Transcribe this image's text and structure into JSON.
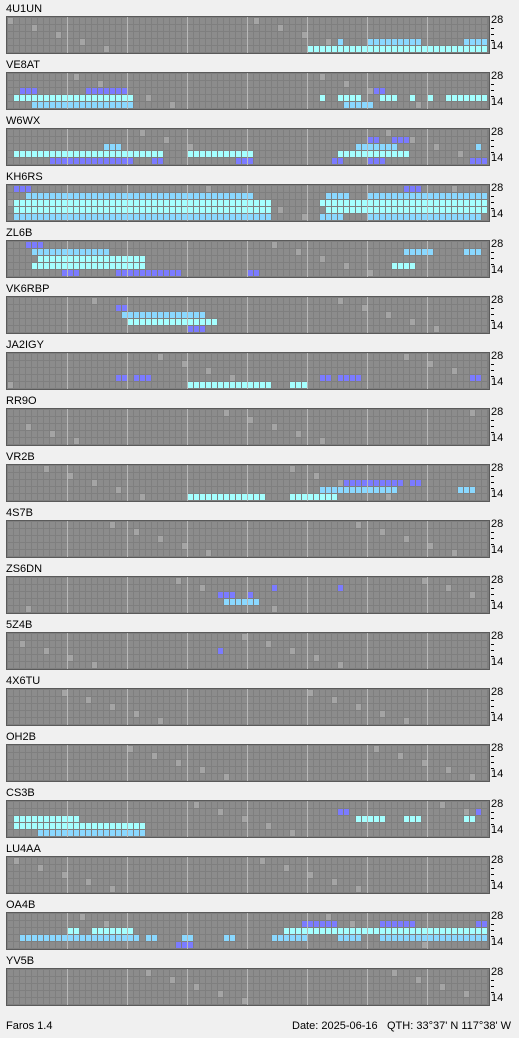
{
  "colors": {
    "background": "#f0f0f0",
    "grid_bg": "#7f7f7f",
    "cell": "#8c8c8c",
    "cell_dim": "#a5a5a5",
    "strong": "#a5ffff",
    "medium": "#8ad8ff",
    "weak": "#7b7bff"
  },
  "axis": {
    "top_label": "28",
    "bottom_label": "14"
  },
  "stations": [
    {
      "name": "4U1UN",
      "active": [
        [
          2,
          "c",
          82,
          83,
          99,
          100
        ],
        [
          3,
          "b",
          55,
          60,
          61,
          62,
          63,
          64,
          65,
          66,
          67,
          68,
          76,
          77,
          78,
          79,
          80,
          81,
          85,
          86,
          87,
          88,
          89,
          90,
          91,
          92,
          93,
          94,
          95,
          96,
          97
        ],
        [
          4,
          "a",
          50,
          51,
          52,
          53,
          54,
          55,
          56,
          57,
          58,
          59,
          60,
          61,
          62,
          63,
          64,
          65,
          66,
          67,
          68,
          69,
          70,
          71,
          72,
          73,
          74,
          75,
          76,
          77,
          78,
          79,
          80,
          81,
          82,
          83,
          84,
          85,
          86,
          87,
          88,
          89,
          90,
          91,
          92,
          93,
          94,
          95,
          96
        ],
        [
          5,
          "b",
          51,
          52,
          53,
          70,
          71,
          72,
          75,
          76,
          77,
          78,
          79,
          80,
          81,
          82,
          83,
          90,
          91,
          94,
          95
        ]
      ]
    },
    {
      "name": "VE8AT",
      "active": [
        [
          2,
          "c",
          2,
          3,
          4,
          13,
          14,
          15,
          16,
          17,
          18,
          19,
          61,
          62
        ],
        [
          3,
          "a",
          1,
          2,
          3,
          4,
          5,
          6,
          7,
          8,
          9,
          10,
          11,
          12,
          13,
          14,
          15,
          16,
          17,
          18,
          19,
          20,
          52,
          55,
          56,
          57,
          58,
          62,
          63,
          64,
          67,
          70,
          73,
          74,
          75,
          76,
          77,
          78,
          79
        ],
        [
          4,
          "b",
          4,
          5,
          6,
          7,
          8,
          9,
          10,
          11,
          12,
          13,
          14,
          15,
          16,
          17,
          18,
          19,
          20,
          56,
          57,
          58,
          59,
          60
        ],
        [
          5,
          "c",
          28,
          29,
          30,
          33
        ]
      ]
    },
    {
      "name": "W6WX",
      "active": [
        [
          1,
          "c",
          60,
          61,
          64,
          65,
          66
        ],
        [
          2,
          "b",
          16,
          17,
          18,
          58,
          59,
          60,
          61,
          62,
          63,
          64,
          78
        ],
        [
          3,
          "a",
          1,
          2,
          3,
          4,
          5,
          6,
          7,
          8,
          9,
          10,
          11,
          12,
          13,
          14,
          15,
          16,
          17,
          18,
          19,
          20,
          21,
          22,
          23,
          24,
          25,
          30,
          31,
          32,
          33,
          34,
          35,
          36,
          37,
          38,
          39,
          40,
          55,
          56,
          57,
          58,
          59,
          60,
          61,
          62,
          63,
          64,
          65,
          66
        ],
        [
          4,
          "c",
          7,
          8,
          9,
          10,
          11,
          12,
          13,
          14,
          15,
          16,
          17,
          18,
          19,
          20,
          24,
          25,
          38,
          39,
          40,
          54,
          55,
          60,
          61,
          62,
          77,
          78,
          79
        ]
      ]
    },
    {
      "name": "KH6RS",
      "active": [
        [
          0,
          "c",
          1,
          2,
          3,
          66,
          67,
          68
        ],
        [
          1,
          "b",
          3,
          4,
          5,
          6,
          7,
          8,
          9,
          10,
          11,
          12,
          13,
          14,
          15,
          16,
          17,
          18,
          19,
          20,
          21,
          22,
          23,
          24,
          25,
          26,
          27,
          28,
          29,
          30,
          31,
          32,
          33,
          34,
          35,
          36,
          37,
          38,
          39,
          40,
          53,
          54,
          55,
          56,
          60,
          61,
          62,
          63,
          64,
          65,
          66,
          67,
          68,
          69,
          70,
          71,
          72,
          73,
          74,
          75,
          76,
          77,
          78,
          79
        ],
        [
          2,
          "a",
          1,
          2,
          3,
          4,
          5,
          6,
          7,
          8,
          9,
          10,
          11,
          12,
          13,
          14,
          15,
          16,
          17,
          18,
          19,
          20,
          21,
          22,
          23,
          24,
          25,
          26,
          27,
          28,
          29,
          30,
          31,
          32,
          33,
          34,
          35,
          36,
          37,
          38,
          39,
          40,
          41,
          42,
          43,
          52,
          53,
          54,
          55,
          56,
          57,
          58,
          59,
          60,
          61,
          62,
          63,
          64,
          65,
          66,
          67,
          68,
          69,
          70,
          71,
          72,
          73,
          74,
          75,
          76,
          77,
          78,
          79,
          80
        ],
        [
          3,
          "a",
          1,
          2,
          3,
          4,
          5,
          6,
          7,
          8,
          9,
          10,
          11,
          12,
          13,
          14,
          15,
          16,
          17,
          18,
          19,
          20,
          21,
          22,
          23,
          24,
          25,
          26,
          27,
          28,
          29,
          30,
          31,
          32,
          33,
          34,
          35,
          36,
          37,
          38,
          39,
          40,
          41,
          42,
          43,
          53,
          54,
          55,
          56,
          57,
          58,
          59,
          60,
          61,
          62,
          63,
          64,
          65,
          66,
          67,
          68,
          69,
          70,
          71,
          72,
          73,
          74,
          75,
          76,
          77,
          78,
          79
        ],
        [
          4,
          "b",
          1,
          2,
          3,
          4,
          5,
          6,
          7,
          8,
          9,
          10,
          11,
          12,
          13,
          14,
          15,
          16,
          17,
          18,
          19,
          20,
          21,
          22,
          23,
          24,
          25,
          26,
          27,
          28,
          29,
          30,
          31,
          32,
          33,
          34,
          35,
          36,
          37,
          38,
          39,
          40,
          41,
          42,
          43,
          52,
          53,
          54,
          55,
          60,
          61,
          62,
          63,
          64,
          65,
          66,
          67,
          68,
          69,
          70,
          71,
          72,
          73,
          74,
          75,
          76,
          77,
          78
        ]
      ]
    },
    {
      "name": "ZL6B",
      "active": [
        [
          0,
          "c",
          3,
          4,
          5
        ],
        [
          1,
          "b",
          4,
          5,
          6,
          7,
          8,
          9,
          10,
          11,
          12,
          13,
          14,
          15,
          16,
          66,
          67,
          68,
          69,
          70,
          76,
          77,
          78
        ],
        [
          2,
          "a",
          5,
          6,
          7,
          8,
          9,
          10,
          11,
          12,
          13,
          14,
          15,
          16,
          17,
          18,
          19,
          20,
          21,
          22
        ],
        [
          3,
          "a",
          4,
          5,
          6,
          7,
          8,
          9,
          10,
          11,
          12,
          13,
          14,
          15,
          16,
          17,
          18,
          19,
          20,
          21,
          22,
          64,
          65,
          66,
          67
        ],
        [
          4,
          "c",
          9,
          10,
          11,
          18,
          19,
          20,
          21,
          22,
          23,
          24,
          25,
          26,
          27,
          28,
          40,
          41
        ]
      ]
    },
    {
      "name": "VK6RBP",
      "active": [
        [
          1,
          "c",
          18,
          19
        ],
        [
          2,
          "b",
          19,
          20,
          21,
          22,
          23,
          24,
          25,
          26,
          27,
          28,
          29,
          30,
          31,
          32
        ],
        [
          3,
          "a",
          20,
          21,
          22,
          23,
          24,
          25,
          26,
          27,
          28,
          29,
          30,
          31,
          32,
          33,
          34
        ],
        [
          4,
          "c",
          30,
          31,
          32
        ]
      ]
    },
    {
      "name": "JA2IGY",
      "active": [
        [
          3,
          "c",
          18,
          19,
          21,
          22,
          23,
          52,
          53,
          55,
          56,
          57,
          58,
          77,
          78
        ],
        [
          4,
          "a",
          30,
          31,
          32,
          33,
          34,
          35,
          36,
          37,
          38,
          39,
          40,
          41,
          42,
          43,
          47,
          48,
          49
        ]
      ]
    },
    {
      "name": "RR9O",
      "active": []
    },
    {
      "name": "VR2B",
      "active": [
        [
          2,
          "c",
          56,
          57,
          58,
          59,
          60,
          61,
          62,
          63,
          64,
          65,
          67,
          68
        ],
        [
          3,
          "b",
          52,
          53,
          54,
          55,
          56,
          57,
          58,
          59,
          60,
          61,
          62,
          63,
          64,
          75,
          76,
          77
        ],
        [
          4,
          "a",
          30,
          31,
          32,
          33,
          34,
          35,
          36,
          37,
          38,
          39,
          40,
          41,
          42,
          47,
          48,
          49,
          50,
          51,
          52,
          53,
          54
        ]
      ]
    },
    {
      "name": "4S7B",
      "active": []
    },
    {
      "name": "ZS6DN",
      "active": [
        [
          1,
          "c",
          44,
          55
        ],
        [
          2,
          "c",
          35,
          36,
          37,
          40
        ],
        [
          3,
          "b",
          36,
          37,
          38,
          39,
          40,
          41
        ]
      ]
    },
    {
      "name": "5Z4B",
      "active": [
        [
          2,
          "c",
          35
        ]
      ]
    },
    {
      "name": "4X6TU",
      "active": []
    },
    {
      "name": "OH2B",
      "active": []
    },
    {
      "name": "CS3B",
      "active": [
        [
          1,
          "c",
          55,
          56,
          78
        ],
        [
          2,
          "a",
          1,
          2,
          3,
          4,
          5,
          6,
          7,
          8,
          9,
          10,
          11,
          58,
          59,
          60,
          61,
          62,
          66,
          67,
          68,
          76,
          77
        ],
        [
          3,
          "a",
          1,
          2,
          3,
          4,
          5,
          6,
          7,
          8,
          9,
          10,
          11,
          12,
          13,
          14,
          15,
          16,
          17,
          18,
          19,
          20,
          21,
          22
        ],
        [
          4,
          "b",
          5,
          6,
          7,
          8,
          9,
          10,
          11,
          12,
          13,
          14,
          15,
          16,
          17,
          18,
          19,
          20,
          21,
          22
        ]
      ]
    },
    {
      "name": "LU4AA",
      "active": []
    },
    {
      "name": "OA4B",
      "active": [
        [
          1,
          "c",
          49,
          50,
          51,
          52,
          53,
          54,
          62,
          63,
          64,
          65,
          66,
          67,
          78,
          79
        ],
        [
          2,
          "a",
          10,
          11,
          14,
          15,
          16,
          17,
          18,
          19,
          20,
          46,
          47,
          48,
          49,
          50,
          51,
          52,
          53,
          54,
          55,
          56,
          57,
          58,
          59,
          60,
          61,
          62,
          63,
          64,
          65,
          66,
          67,
          68,
          69,
          70,
          71,
          72,
          73,
          74,
          75,
          76,
          77,
          78,
          79,
          80
        ],
        [
          3,
          "b",
          2,
          3,
          4,
          5,
          6,
          7,
          8,
          9,
          10,
          11,
          12,
          13,
          14,
          15,
          16,
          17,
          18,
          19,
          20,
          21,
          23,
          24,
          29,
          30,
          36,
          37,
          44,
          45,
          46,
          47,
          48,
          49,
          55,
          56,
          57,
          58,
          62,
          63,
          64,
          65,
          66,
          67,
          68,
          69,
          70,
          71,
          72,
          73,
          74,
          75,
          76,
          77,
          78,
          79,
          80
        ],
        [
          4,
          "c",
          28,
          29,
          30
        ]
      ]
    },
    {
      "name": "YV5B",
      "active": []
    }
  ],
  "footer": {
    "version": "Faros 1.4",
    "date": "Date: 2025-06-16",
    "qth": "QTH: 33°37' N  117°38' W"
  }
}
